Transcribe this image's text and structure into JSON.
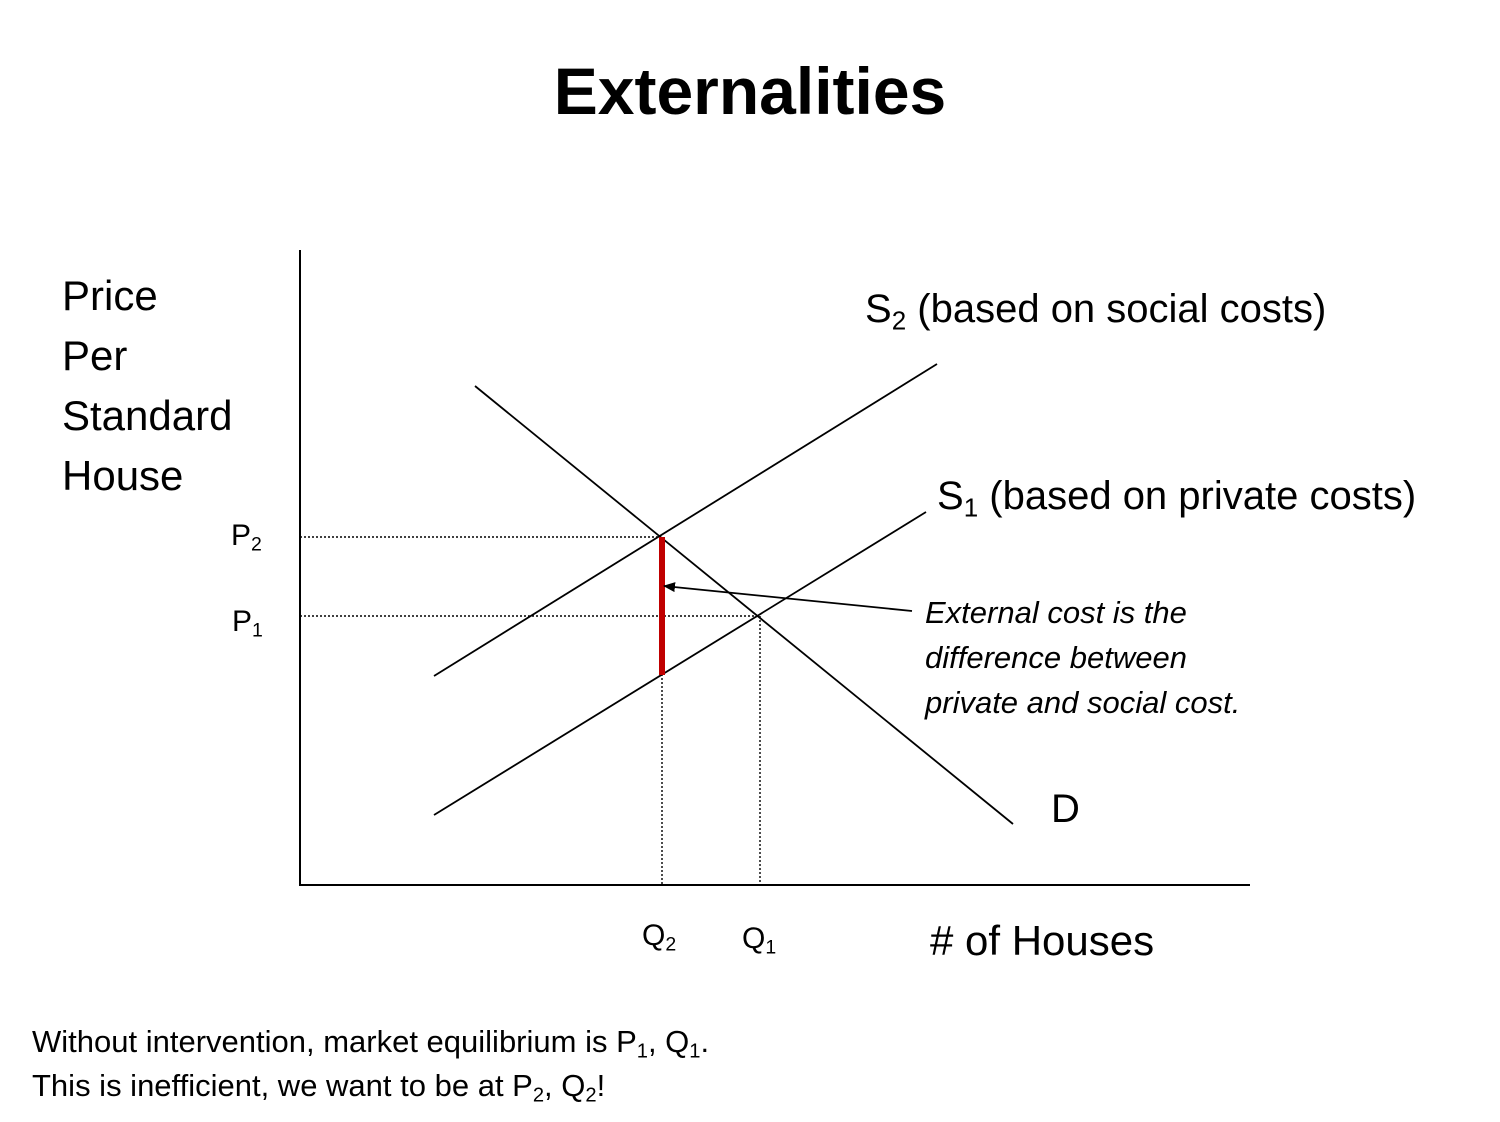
{
  "title": "Externalities",
  "y_axis_label": [
    "Price",
    "Per",
    "Standard",
    "House"
  ],
  "x_axis_label": "# of Houses",
  "curves": {
    "s2": {
      "base": "S",
      "sub": "2",
      "text": " (based on social costs)"
    },
    "s1": {
      "base": "S",
      "sub": "1",
      "text": " (based on private costs)"
    },
    "demand": {
      "text": "D"
    }
  },
  "ticks": {
    "p2": {
      "base": "P",
      "sub": "2"
    },
    "p1": {
      "base": "P",
      "sub": "1"
    },
    "q2": {
      "base": "Q",
      "sub": "2"
    },
    "q1": {
      "base": "Q",
      "sub": "1"
    }
  },
  "annotation": [
    "External cost is the",
    "difference between",
    "private and social cost."
  ],
  "footer": {
    "line1": {
      "t1": "Without intervention, market equilibrium is P",
      "s1": "1",
      "t2": ", Q",
      "s2": "1",
      "t3": "."
    },
    "line2": {
      "t1": "This is inefficient, we want to be at P",
      "s1": "2",
      "t2": ", Q",
      "s2": "2",
      "t3": "!"
    }
  },
  "colors": {
    "external_cost_bar": "#c00000",
    "lines": "#000000"
  }
}
